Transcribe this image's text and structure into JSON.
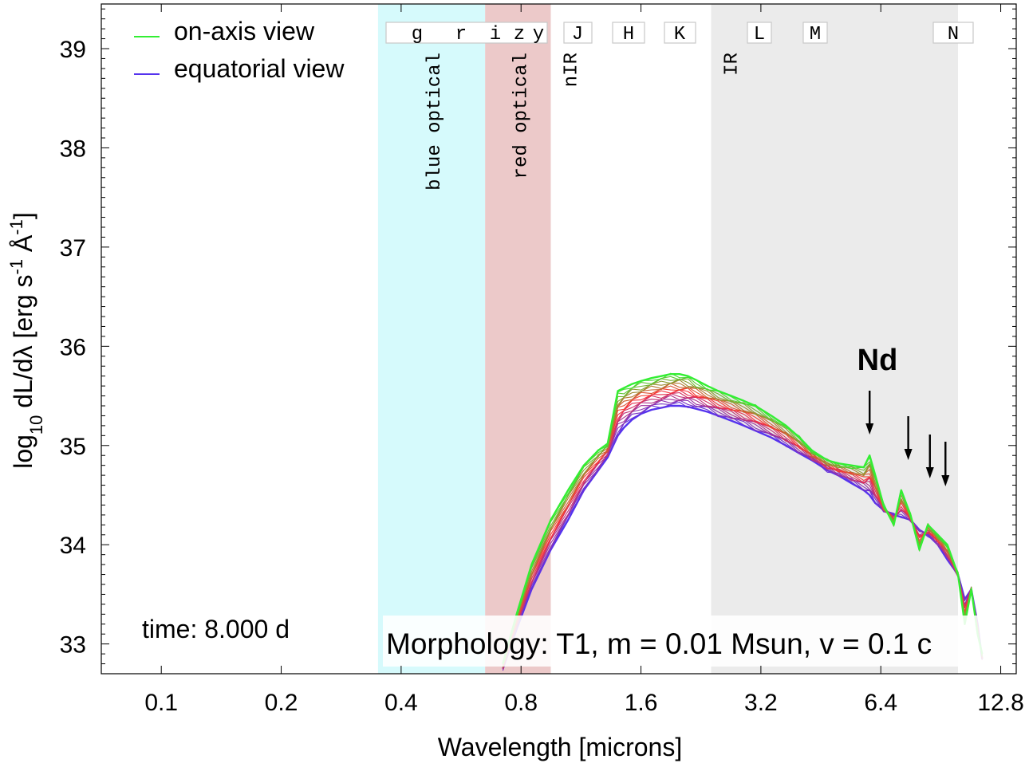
{
  "chart_data": {
    "type": "line",
    "xlabel": "Wavelength [microns]",
    "ylabel_parts": {
      "log": "log",
      "sub10": "10",
      "main": " dL/dλ [erg s",
      "exp1": "-1",
      "ang": " Å",
      "exp2": "-1",
      "close": "]"
    },
    "xscale": "log2",
    "xlim": [
      0.0707,
      14.0
    ],
    "ylim": [
      32.7,
      39.45
    ],
    "x_ticks": [
      0.1,
      0.2,
      0.4,
      0.8,
      1.6,
      3.2,
      6.4,
      12.8
    ],
    "x_tick_labels": [
      "0.1",
      "0.2",
      "0.4",
      "0.8",
      "1.6",
      "3.2",
      "6.4",
      "12.8"
    ],
    "y_ticks": [
      33,
      34,
      35,
      36,
      37,
      38,
      39
    ],
    "y_tick_labels": [
      "33",
      "34",
      "35",
      "36",
      "37",
      "38",
      "39"
    ],
    "bands": [
      {
        "name": "blue optical",
        "x0": 0.35,
        "x1": 0.65,
        "color": "#d6fafc"
      },
      {
        "name": "red optical",
        "x0": 0.65,
        "x1": 0.95,
        "color": "#ecc9c9"
      },
      {
        "name": "nIR",
        "x0": 0.95,
        "x1": 2.4,
        "color": "#ffffff"
      },
      {
        "name": "IR",
        "x0": 2.4,
        "x1": 10.0,
        "color": "#ebebeb"
      }
    ],
    "filters": [
      {
        "label": "g",
        "x": 0.47
      },
      {
        "label": "r",
        "x": 0.62
      },
      {
        "label": "i",
        "x": 0.75
      },
      {
        "label": "z",
        "x": 0.87
      },
      {
        "label": "y",
        "x": 0.97
      },
      {
        "label": "J",
        "x": 1.25
      },
      {
        "label": "H",
        "x": 1.65
      },
      {
        "label": "K",
        "x": 2.2
      },
      {
        "label": "L",
        "x": 3.5
      },
      {
        "label": "M",
        "x": 4.8
      },
      {
        "label": "N",
        "x": 10.4
      }
    ],
    "legend": [
      {
        "label": "on-axis view",
        "color": "#33ee33"
      },
      {
        "label": "equatorial view",
        "color": "#5533ee"
      }
    ],
    "series_count": 20,
    "series_colors": {
      "on_axis": "#33ee33",
      "mid": "#ff3333",
      "equatorial": "#5533ee"
    },
    "series": [
      {
        "name": "on-axis view",
        "x": [
          0.72,
          0.78,
          0.85,
          0.95,
          1.05,
          1.15,
          1.25,
          1.32,
          1.4,
          1.45,
          1.52,
          1.6,
          1.7,
          1.8,
          1.9,
          2.0,
          2.1,
          2.2,
          2.35,
          2.5,
          2.7,
          2.9,
          3.1,
          3.4,
          3.7,
          4.0,
          4.3,
          4.7,
          5.0,
          5.4,
          5.8,
          6.0,
          6.2,
          6.5,
          6.9,
          7.2,
          7.6,
          8.0,
          8.4,
          8.9,
          9.4,
          10.0,
          10.4,
          10.8,
          11.2,
          11.5
        ],
        "y": [
          32.8,
          33.3,
          33.8,
          34.25,
          34.55,
          34.8,
          34.95,
          35.02,
          35.55,
          35.58,
          35.62,
          35.65,
          35.68,
          35.7,
          35.72,
          35.72,
          35.7,
          35.66,
          35.6,
          35.55,
          35.5,
          35.45,
          35.4,
          35.3,
          35.2,
          35.08,
          34.95,
          34.85,
          34.82,
          34.8,
          34.78,
          34.9,
          34.7,
          34.4,
          34.2,
          34.55,
          34.3,
          33.95,
          34.2,
          34.1,
          34.0,
          33.7,
          33.2,
          33.55,
          33.1,
          32.9
        ]
      },
      {
        "name": "equatorial view",
        "x": [
          0.72,
          0.78,
          0.85,
          0.95,
          1.05,
          1.15,
          1.25,
          1.32,
          1.4,
          1.45,
          1.52,
          1.6,
          1.7,
          1.8,
          1.9,
          2.0,
          2.1,
          2.2,
          2.35,
          2.5,
          2.7,
          2.9,
          3.1,
          3.4,
          3.7,
          4.0,
          4.3,
          4.7,
          5.0,
          5.4,
          5.8,
          6.0,
          6.2,
          6.5,
          6.9,
          7.2,
          7.6,
          8.0,
          8.4,
          8.9,
          9.4,
          10.0,
          10.4,
          10.8,
          11.2,
          11.5
        ],
        "y": [
          32.75,
          33.15,
          33.55,
          33.95,
          34.25,
          34.55,
          34.75,
          34.88,
          35.1,
          35.18,
          35.26,
          35.32,
          35.36,
          35.38,
          35.4,
          35.4,
          35.39,
          35.37,
          35.34,
          35.3,
          35.25,
          35.2,
          35.15,
          35.08,
          35.0,
          34.92,
          34.85,
          34.75,
          34.7,
          34.62,
          34.55,
          34.5,
          34.42,
          34.35,
          34.3,
          34.28,
          34.25,
          34.15,
          34.1,
          34.0,
          33.85,
          33.7,
          33.45,
          33.55,
          33.2,
          32.85
        ]
      }
    ],
    "annotation_element": "Nd",
    "arrows_x": [
      6.0,
      7.5,
      8.5,
      9.3
    ],
    "time_label": "time: 8.000 d",
    "morphology_label": "Morphology: T1, m = 0.01 Msun, v = 0.1 c"
  }
}
